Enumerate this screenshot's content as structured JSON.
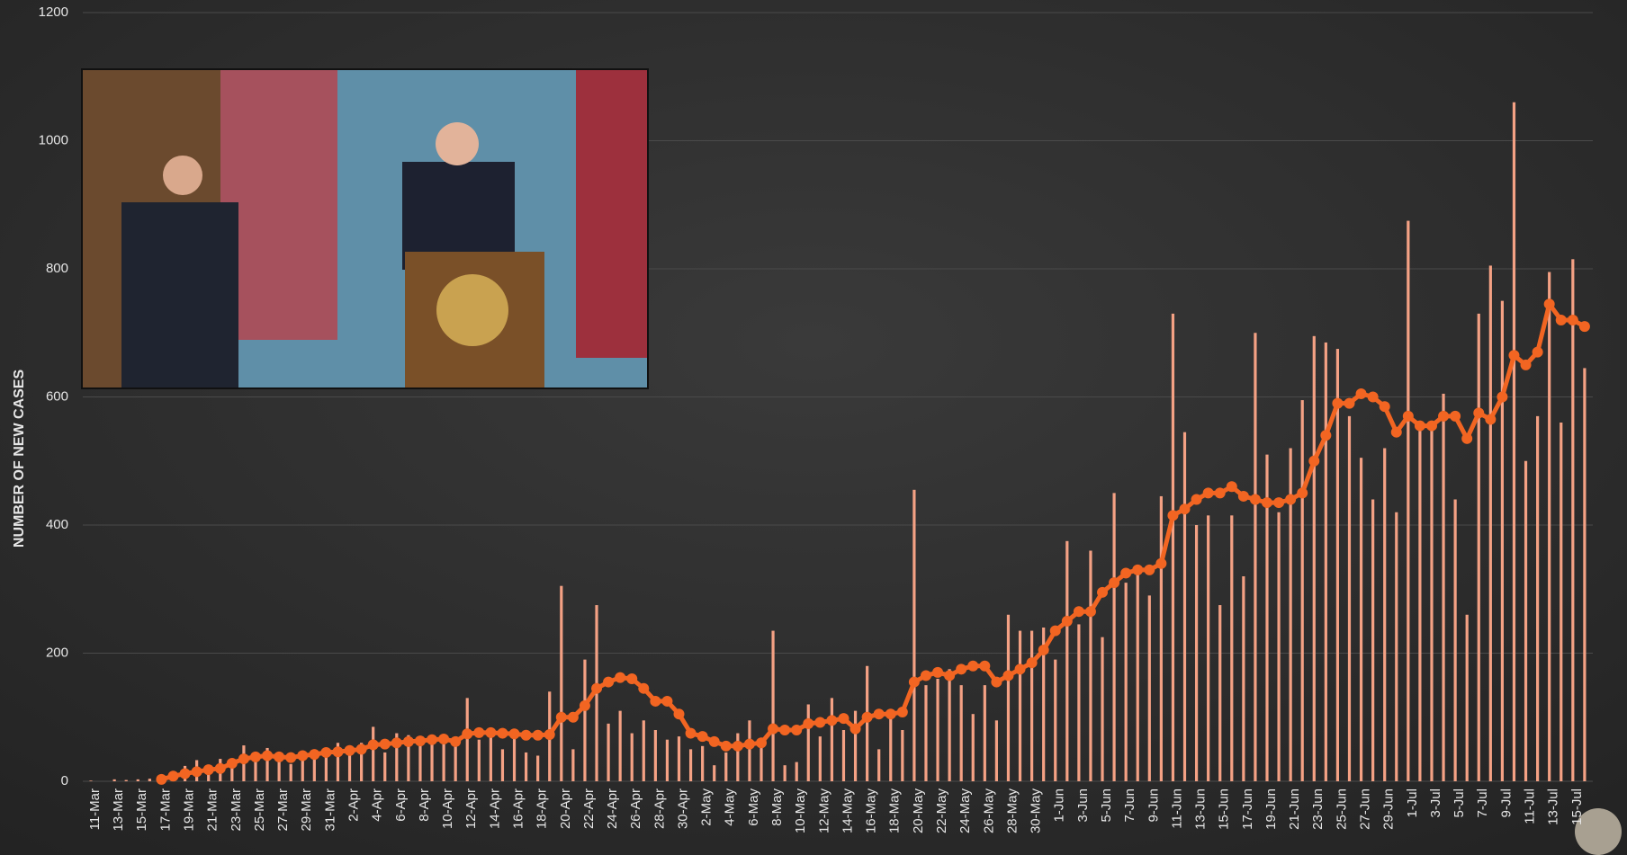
{
  "chart_data": {
    "type": "bar_line",
    "y_label": "NUMBER OF NEW CASES",
    "ylim": [
      0,
      1200
    ],
    "yticks": [
      0,
      200,
      400,
      600,
      800,
      1000,
      1200
    ],
    "grid": true,
    "categories": [
      "11-Mar",
      null,
      "13-Mar",
      null,
      "15-Mar",
      null,
      "17-Mar",
      null,
      "19-Mar",
      null,
      "21-Mar",
      null,
      "23-Mar",
      null,
      "25-Mar",
      null,
      "27-Mar",
      null,
      "29-Mar",
      null,
      "31-Mar",
      null,
      "2-Apr",
      null,
      "4-Apr",
      null,
      "6-Apr",
      null,
      "8-Apr",
      null,
      "10-Apr",
      null,
      "12-Apr",
      null,
      "14-Apr",
      null,
      "16-Apr",
      null,
      "18-Apr",
      null,
      "20-Apr",
      null,
      "22-Apr",
      null,
      "24-Apr",
      null,
      "26-Apr",
      null,
      "28-Apr",
      null,
      "30-Apr",
      null,
      "2-May",
      null,
      "4-May",
      null,
      "6-May",
      null,
      "8-May",
      null,
      "10-May",
      null,
      "12-May",
      null,
      "14-May",
      null,
      "16-May",
      null,
      "18-May",
      null,
      "20-May",
      null,
      "22-May",
      null,
      "24-May",
      null,
      "26-May",
      null,
      "28-May",
      null,
      "30-May",
      null,
      "1-Jun",
      null,
      "3-Jun",
      null,
      "5-Jun",
      null,
      "7-Jun",
      null,
      "9-Jun",
      null,
      "11-Jun",
      null,
      "13-Jun",
      null,
      "15-Jun",
      null,
      "17-Jun",
      null,
      "19-Jun",
      null,
      "21-Jun",
      null,
      "23-Jun",
      null,
      "25-Jun",
      null,
      "27-Jun",
      null,
      "29-Jun",
      null,
      "1-Jul",
      null,
      "3-Jul",
      null,
      "5-Jul",
      null,
      "7-Jul",
      null,
      "9-Jul",
      null,
      "11-Jul",
      null,
      "13-Jul",
      null,
      "15-Jul",
      null
    ],
    "series": [
      {
        "type": "bar",
        "color": "#f4a184",
        "values": [
          1,
          0,
          3,
          2,
          3,
          4,
          6,
          10,
          24,
          33,
          18,
          35,
          32,
          56,
          38,
          52,
          31,
          27,
          46,
          38,
          50,
          60,
          40,
          60,
          85,
          45,
          75,
          72,
          60,
          70,
          58,
          55,
          130,
          65,
          70,
          50,
          75,
          45,
          40,
          140,
          305,
          50,
          190,
          275,
          90,
          110,
          75,
          95,
          80,
          65,
          70,
          50,
          55,
          25,
          45,
          75,
          95,
          55,
          235,
          25,
          30,
          120,
          70,
          130,
          80,
          110,
          180,
          50,
          100,
          80,
          455,
          150,
          160,
          175,
          150,
          105,
          150,
          95,
          260,
          235,
          235,
          240,
          190,
          375,
          245,
          360,
          225,
          450,
          310,
          330,
          290,
          445,
          730,
          545,
          400,
          415,
          275,
          415,
          320,
          700,
          510,
          420,
          520,
          595,
          695,
          685,
          675,
          570,
          505,
          440,
          520,
          420,
          875,
          560,
          555,
          605,
          440,
          260,
          730,
          805,
          750,
          1060,
          500,
          570,
          795,
          560,
          815,
          645
        ]
      },
      {
        "type": "line",
        "color": "#f26522",
        "values": [
          null,
          null,
          null,
          null,
          null,
          null,
          3,
          8,
          12,
          15,
          18,
          20,
          28,
          35,
          38,
          40,
          38,
          37,
          40,
          42,
          45,
          46,
          48,
          50,
          57,
          58,
          60,
          62,
          63,
          65,
          66,
          62,
          74,
          76,
          76,
          75,
          74,
          72,
          72,
          73,
          100,
          100,
          118,
          145,
          155,
          162,
          160,
          145,
          125,
          125,
          105,
          75,
          70,
          62,
          55,
          55,
          58,
          60,
          82,
          80,
          80,
          90,
          92,
          95,
          98,
          82,
          100,
          105,
          105,
          108,
          155,
          165,
          170,
          165,
          175,
          180,
          180,
          155,
          165,
          175,
          185,
          205,
          235,
          250,
          265,
          265,
          295,
          310,
          325,
          330,
          330,
          340,
          415,
          425,
          440,
          450,
          450,
          460,
          445,
          440,
          435,
          435,
          440,
          450,
          500,
          540,
          590,
          590,
          605,
          600,
          585,
          545,
          570,
          555,
          555,
          570,
          570,
          535,
          575,
          565,
          600,
          665,
          650,
          670,
          745,
          720,
          720,
          710
        ]
      }
    ]
  }
}
